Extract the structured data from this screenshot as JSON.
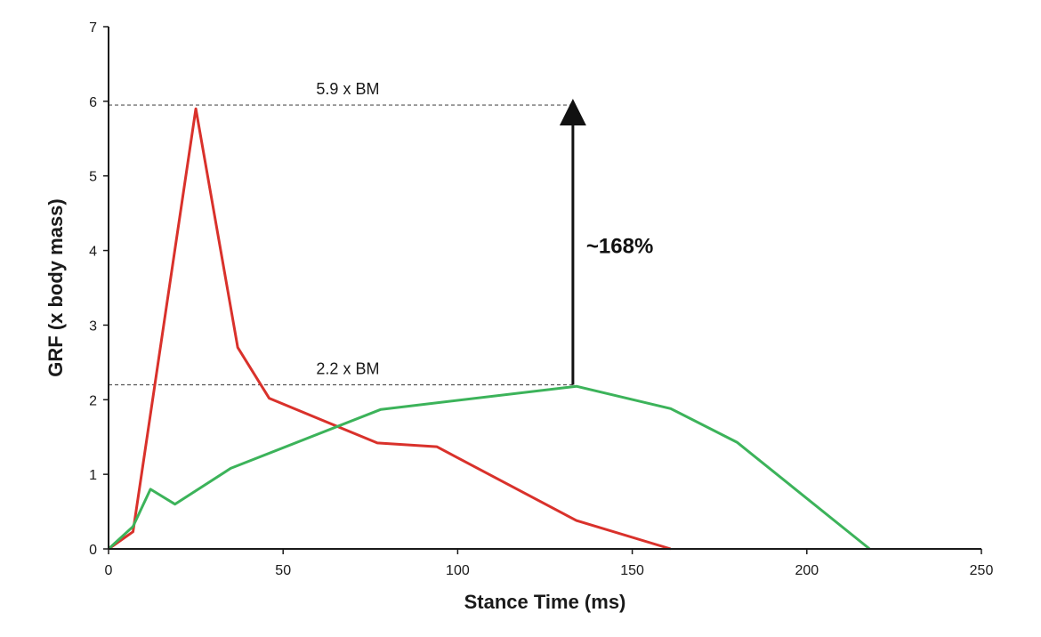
{
  "chart_data": {
    "type": "line",
    "title": "",
    "xlabel": "Stance Time (ms)",
    "ylabel": "GRF (x body mass)",
    "xlim": [
      0,
      250
    ],
    "ylim": [
      0,
      7
    ],
    "xticks": [
      0,
      50,
      100,
      150,
      200,
      250
    ],
    "yticks": [
      0,
      1,
      2,
      3,
      4,
      5,
      6,
      7
    ],
    "grid": false,
    "series": [
      {
        "name": "red-series",
        "color": "#d9312b",
        "x": [
          0,
          7,
          25,
          37,
          46,
          77,
          94,
          134,
          161
        ],
        "y": [
          0,
          0.23,
          5.9,
          2.7,
          2.02,
          1.42,
          1.37,
          0.38,
          0
        ]
      },
      {
        "name": "green-series",
        "color": "#3cb35a",
        "x": [
          0,
          7,
          12,
          19,
          35,
          78,
          134,
          161,
          180,
          218
        ],
        "y": [
          0,
          0.3,
          0.8,
          0.6,
          1.08,
          1.87,
          2.18,
          1.88,
          1.43,
          0
        ]
      }
    ],
    "annotations": {
      "peak_high": {
        "text": "5.9 x BM",
        "y": 5.95,
        "x_start": 0,
        "x_end": 133
      },
      "peak_low": {
        "text": "2.2 x BM",
        "y": 2.2,
        "x_start": 0,
        "x_end": 133
      },
      "difference": {
        "text": "~168%",
        "x": 133,
        "y_from": 2.2,
        "y_to": 5.95
      }
    }
  }
}
